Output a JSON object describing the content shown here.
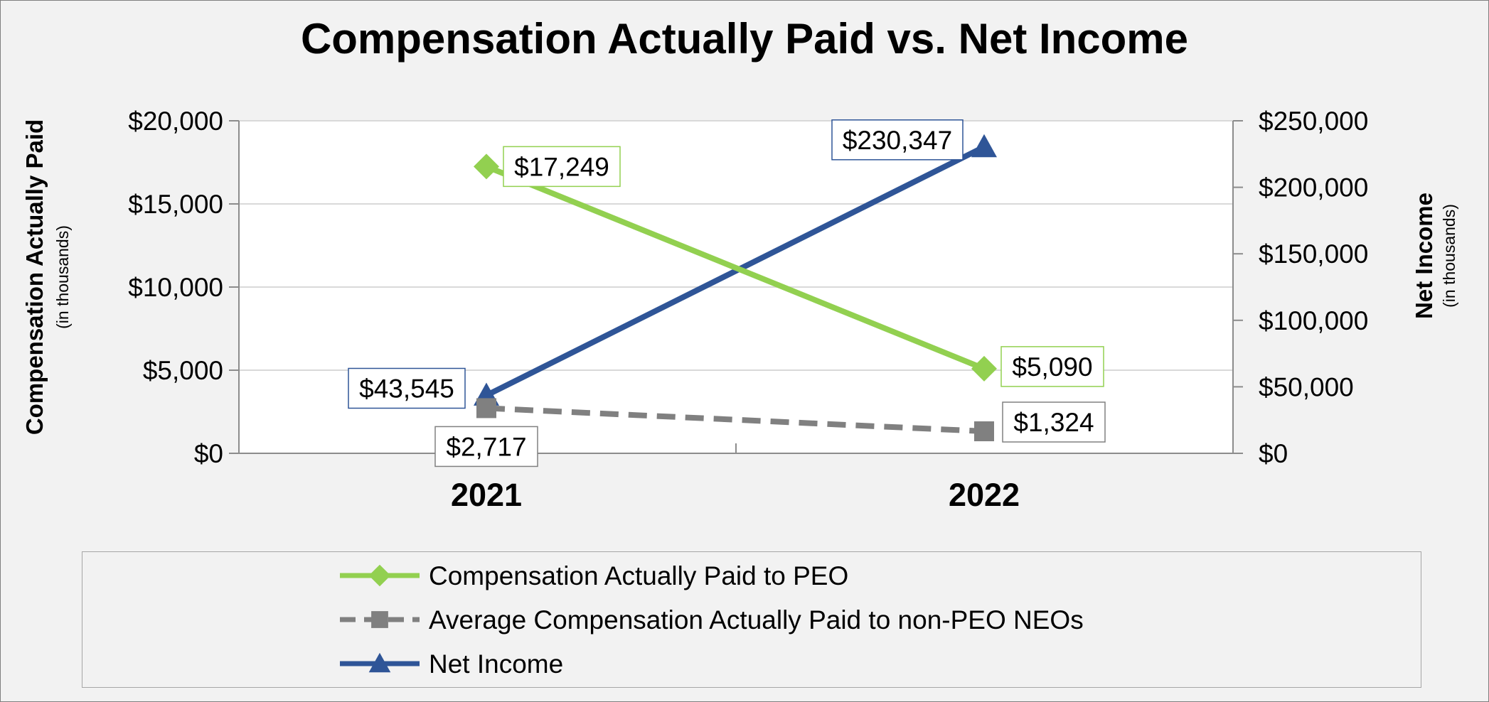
{
  "chart_data": {
    "type": "line",
    "title": "Compensation Actually Paid vs. Net Income",
    "categories": [
      "2021",
      "2022"
    ],
    "y_left": {
      "label": "Compensation Actually Paid",
      "sublabel": "(in thousands)",
      "range": [
        0,
        20000
      ],
      "ticks": [
        "$0",
        "$5,000",
        "$10,000",
        "$15,000",
        "$20,000"
      ]
    },
    "y_right": {
      "label": "Net Income",
      "sublabel": "(in thousands)",
      "range": [
        0,
        250000
      ],
      "ticks": [
        "$0",
        "$50,000",
        "$100,000",
        "$150,000",
        "$200,000",
        "$250,000"
      ]
    },
    "grid": true,
    "legend_position": "bottom",
    "series": [
      {
        "name": "Compensation Actually Paid to PEO",
        "axis": "left",
        "values": [
          17249,
          5090
        ],
        "labels": [
          "$17,249",
          "$5,090"
        ],
        "color": "#92d050",
        "marker": "diamond",
        "dash": false
      },
      {
        "name": "Average Compensation Actually Paid to non-PEO NEOs",
        "axis": "left",
        "values": [
          2717,
          1324
        ],
        "labels": [
          "$2,717",
          "$1,324"
        ],
        "color": "#808080",
        "marker": "square",
        "dash": true
      },
      {
        "name": "Net Income",
        "axis": "right",
        "values": [
          43545,
          230347
        ],
        "labels": [
          "$43,545",
          "$230,347"
        ],
        "color": "#2f5597",
        "marker": "triangle",
        "dash": false
      }
    ]
  }
}
